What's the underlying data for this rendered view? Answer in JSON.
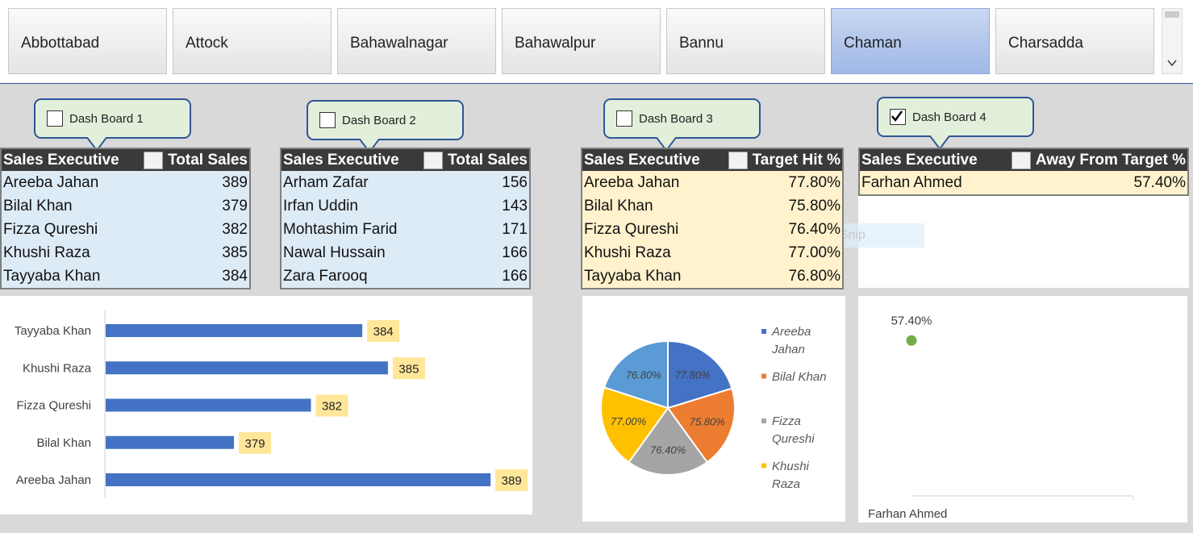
{
  "slicer": {
    "items": [
      "Abbottabad",
      "Attock",
      "Bahawalnagar",
      "Bahawalpur",
      "Bannu",
      "Chaman",
      "Charsadda"
    ],
    "selected_index": 5
  },
  "dashboards": [
    {
      "label": "Dash Board 1",
      "checked": false
    },
    {
      "label": "Dash Board 2",
      "checked": false
    },
    {
      "label": "Dash Board 3",
      "checked": false
    },
    {
      "label": "Dash Board 4",
      "checked": true
    }
  ],
  "tables": [
    {
      "headers": [
        "Sales Executive",
        "Total Sales"
      ],
      "rows": [
        [
          "Areeba Jahan",
          389
        ],
        [
          "Bilal Khan",
          379
        ],
        [
          "Fizza Qureshi",
          382
        ],
        [
          "Khushi Raza",
          385
        ],
        [
          "Tayyaba Khan",
          384
        ]
      ]
    },
    {
      "headers": [
        "Sales Executive",
        "Total Sales"
      ],
      "rows": [
        [
          "Arham Zafar",
          156
        ],
        [
          "Irfan Uddin",
          143
        ],
        [
          "Mohtashim Farid",
          171
        ],
        [
          "Nawal Hussain",
          166
        ],
        [
          "Zara Farooq",
          166
        ]
      ]
    },
    {
      "headers": [
        "Sales Executive",
        "Target Hit %"
      ],
      "rows": [
        [
          "Areeba Jahan",
          "77.80%"
        ],
        [
          "Bilal Khan",
          "75.80%"
        ],
        [
          "Fizza Qureshi",
          "76.40%"
        ],
        [
          "Khushi Raza",
          "77.00%"
        ],
        [
          "Tayyaba Khan",
          "76.80%"
        ]
      ]
    },
    {
      "headers": [
        "Sales Executive",
        "Away From Target %"
      ],
      "rows": [
        [
          "Farhan Ahmed",
          "57.40%"
        ]
      ]
    }
  ],
  "overlay_text": "Rectangular Snip",
  "chart_data": [
    {
      "type": "bar",
      "orientation": "horizontal",
      "categories": [
        "Areeba Jahan",
        "Bilal Khan",
        "Fizza Qureshi",
        "Khushi Raza",
        "Tayyaba Khan"
      ],
      "values": [
        389,
        379,
        382,
        385,
        384
      ],
      "color": "#4472c4",
      "label_color": "#ffe699",
      "xlim": [
        374,
        390
      ]
    },
    {
      "type": "pie",
      "categories": [
        "Areeba Jahan",
        "Bilal Khan",
        "Fizza Qureshi",
        "Khushi Raza",
        null
      ],
      "values": [
        77.8,
        75.8,
        76.4,
        77.0,
        76.8
      ],
      "value_labels": [
        "77.80%",
        "75.80%",
        "76.40%",
        "77.00%",
        "76.80%"
      ],
      "colors": [
        "#4472c4",
        "#ed7d31",
        "#a5a5a5",
        "#ffc000",
        "#5b9bd5"
      ]
    },
    {
      "type": "line",
      "categories": [
        "Farhan Ahmed"
      ],
      "values": [
        57.4
      ],
      "value_labels": [
        "57.40%"
      ],
      "color": "#70ad47",
      "ylim": [
        0,
        70
      ]
    }
  ]
}
